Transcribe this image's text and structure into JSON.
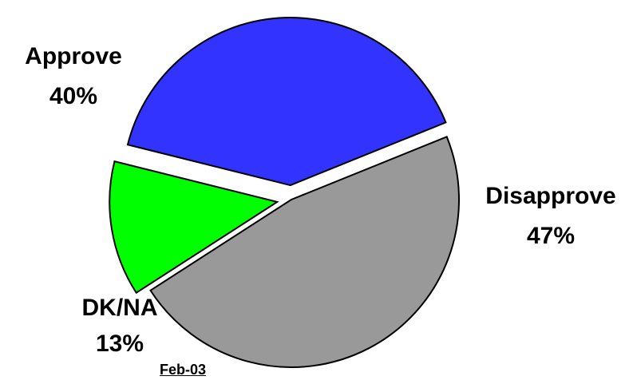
{
  "chart_data": {
    "type": "pie",
    "slices": [
      {
        "name": "Approve",
        "value": 40,
        "label": "40%",
        "color": "#3333ff"
      },
      {
        "name": "Disapprove",
        "value": 47,
        "label": "47%",
        "color": "#999999"
      },
      {
        "name": "DK/NA",
        "value": 13,
        "label": "13%",
        "color": "#00ff00"
      }
    ],
    "date_label": "Feb-03"
  }
}
